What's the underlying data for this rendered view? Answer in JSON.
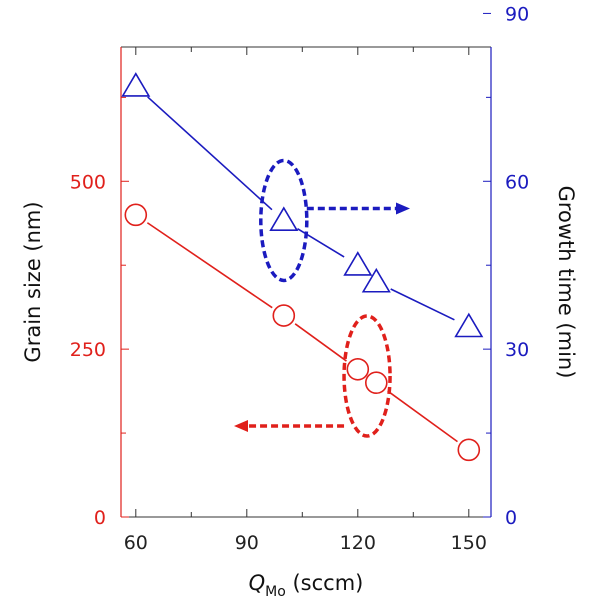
{
  "chart_data": {
    "type": "line",
    "xlabel": "Q",
    "xlabel_subscript": "Mo",
    "xlabel_unit": " (sccm)",
    "ylabel_left": "Grain size (nm)",
    "ylabel_right": "Growth time (min)",
    "x_ticks": [
      "60",
      "90",
      "120",
      "150"
    ],
    "x_tick_values": [
      60,
      90,
      120,
      150
    ],
    "y_left_ticks": [
      "0",
      "250",
      "500"
    ],
    "y_left_tick_values": [
      0,
      250,
      500
    ],
    "y_right_ticks": [
      "0",
      "30",
      "60",
      "90"
    ],
    "y_right_tick_values": [
      0,
      30,
      60,
      90
    ],
    "xlim": [
      56,
      156
    ],
    "ylim_left": [
      0,
      700
    ],
    "ylim_right": [
      0,
      84
    ],
    "grid": false,
    "series": [
      {
        "axis": "left",
        "marker": "circle",
        "color": "#e0201b",
        "x": [
          60,
          100,
          120,
          125,
          150
        ],
        "y": [
          450,
          300,
          220,
          200,
          100
        ]
      },
      {
        "axis": "right",
        "marker": "triangle",
        "color": "#1b1bbf",
        "x": [
          60,
          100,
          120,
          125,
          150
        ],
        "y": [
          77,
          53,
          45,
          42,
          34
        ]
      }
    ],
    "annotations": [
      {
        "type": "ellipse-arrow",
        "color": "#e0201b",
        "direction": "left",
        "x": 122.5,
        "y_axis": "left",
        "y": 210
      },
      {
        "type": "ellipse-arrow",
        "color": "#1b1bbf",
        "direction": "right",
        "x": 100,
        "y_axis": "right",
        "y": 53
      }
    ],
    "colors": {
      "left_axis": "#e0201b",
      "right_axis": "#1b1bbf",
      "frame": "#333333"
    }
  }
}
